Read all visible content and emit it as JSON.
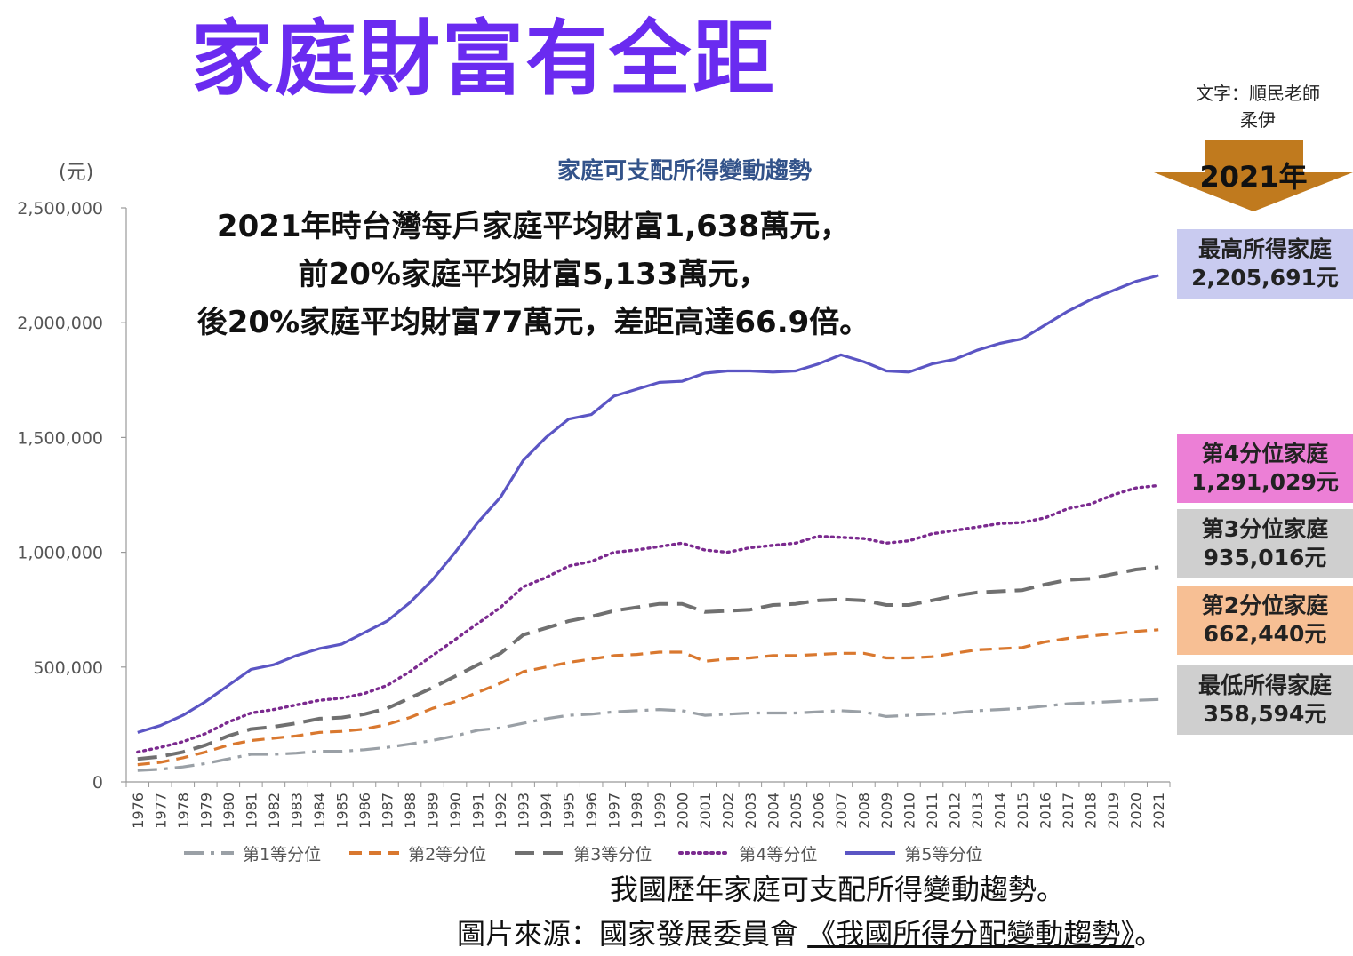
{
  "headline": "家庭財富有全距",
  "credit": {
    "line1": "文字：順民老師",
    "line2": "柔伊"
  },
  "annotation": {
    "line1": "2021年時台灣每戶家庭平均財富1,638萬元，",
    "line2": "前20%家庭平均財富5,133萬元，",
    "line3": "後20%家庭平均財富77萬元，差距高達66.9倍。"
  },
  "marker": {
    "label": "2021年",
    "color": "#c07a1e"
  },
  "callouts": [
    {
      "title": "最高所得家庭",
      "value": "2,205,691元",
      "bg": "#c9cbf0"
    },
    {
      "title": "第4分位家庭",
      "value": "1,291,029元",
      "bg": "#ec7fd6"
    },
    {
      "title": "第3分位家庭",
      "value": "935,016元",
      "bg": "#cfcfcf"
    },
    {
      "title": "第2分位家庭",
      "value": "662,440元",
      "bg": "#f7bf94"
    },
    {
      "title": "最低所得家庭",
      "value": "358,594元",
      "bg": "#cfcfcf"
    }
  ],
  "caption": "我國歷年家庭可支配所得變動趨勢。",
  "source": {
    "prefix": "圖片來源：國家發展委員會 ",
    "link": "《我國所得分配變動趨勢》",
    "suffix": "。"
  },
  "chart_data": {
    "type": "line",
    "title": "家庭可支配所得變動趨勢",
    "ylabel": "(元)",
    "xlabel": "",
    "ylim": [
      0,
      2500000
    ],
    "yticks": [
      0,
      500000,
      1000000,
      1500000,
      2000000,
      2500000
    ],
    "ytick_labels": [
      "0",
      "500,000",
      "1,000,000",
      "1,500,000",
      "2,000,000",
      "2,500,000"
    ],
    "grid": false,
    "legend_position": "bottom",
    "x": [
      "1976",
      "1977",
      "1978",
      "1979",
      "1980",
      "1981",
      "1982",
      "1983",
      "1984",
      "1985",
      "1986",
      "1987",
      "1988",
      "1989",
      "1990",
      "1991",
      "1992",
      "1993",
      "1994",
      "1995",
      "1996",
      "1997",
      "1998",
      "1999",
      "2000",
      "2001",
      "2002",
      "2003",
      "2004",
      "2005",
      "2006",
      "2007",
      "2008",
      "2009",
      "2010",
      "2011",
      "2012",
      "2013",
      "2014",
      "2015",
      "2016",
      "2017",
      "2018",
      "2019",
      "2020",
      "2021"
    ],
    "series": [
      {
        "name": "第1等分位",
        "color": "#9aa0a6",
        "dash": "dashdot",
        "values": [
          50000,
          55000,
          65000,
          80000,
          100000,
          120000,
          120000,
          125000,
          133000,
          133000,
          140000,
          150000,
          165000,
          180000,
          200000,
          225000,
          235000,
          255000,
          275000,
          290000,
          295000,
          305000,
          310000,
          315000,
          310000,
          290000,
          295000,
          300000,
          300000,
          300000,
          305000,
          310000,
          305000,
          285000,
          290000,
          295000,
          300000,
          310000,
          315000,
          320000,
          330000,
          340000,
          345000,
          350000,
          355000,
          358594
        ]
      },
      {
        "name": "第2等分位",
        "color": "#d9782f",
        "dash": "dashed",
        "values": [
          75000,
          85000,
          105000,
          130000,
          160000,
          180000,
          190000,
          200000,
          215000,
          220000,
          230000,
          250000,
          280000,
          320000,
          350000,
          390000,
          430000,
          480000,
          500000,
          520000,
          535000,
          550000,
          555000,
          565000,
          565000,
          525000,
          535000,
          540000,
          550000,
          550000,
          555000,
          560000,
          560000,
          540000,
          540000,
          545000,
          560000,
          575000,
          580000,
          585000,
          610000,
          625000,
          635000,
          645000,
          655000,
          662440
        ]
      },
      {
        "name": "第3等分位",
        "color": "#707070",
        "dash": "longdash",
        "values": [
          100000,
          110000,
          130000,
          160000,
          200000,
          230000,
          240000,
          255000,
          275000,
          280000,
          295000,
          320000,
          365000,
          410000,
          460000,
          510000,
          560000,
          640000,
          670000,
          700000,
          720000,
          745000,
          760000,
          775000,
          775000,
          740000,
          745000,
          750000,
          770000,
          775000,
          790000,
          795000,
          790000,
          770000,
          770000,
          790000,
          810000,
          825000,
          830000,
          835000,
          860000,
          880000,
          885000,
          905000,
          925000,
          935016
        ]
      },
      {
        "name": "第4等分位",
        "color": "#7b2a8f",
        "dash": "dotted",
        "values": [
          130000,
          150000,
          175000,
          210000,
          260000,
          300000,
          315000,
          335000,
          355000,
          365000,
          385000,
          420000,
          480000,
          550000,
          620000,
          690000,
          760000,
          850000,
          890000,
          940000,
          960000,
          1000000,
          1010000,
          1025000,
          1040000,
          1010000,
          1000000,
          1020000,
          1030000,
          1040000,
          1070000,
          1065000,
          1060000,
          1040000,
          1050000,
          1080000,
          1095000,
          1110000,
          1125000,
          1130000,
          1150000,
          1190000,
          1210000,
          1250000,
          1280000,
          1291029
        ]
      },
      {
        "name": "第5等分位",
        "color": "#5b55c4",
        "dash": "solid",
        "values": [
          215000,
          245000,
          290000,
          350000,
          420000,
          490000,
          510000,
          550000,
          580000,
          600000,
          650000,
          700000,
          780000,
          880000,
          1000000,
          1130000,
          1240000,
          1400000,
          1500000,
          1580000,
          1600000,
          1680000,
          1710000,
          1740000,
          1745000,
          1780000,
          1790000,
          1790000,
          1785000,
          1790000,
          1820000,
          1860000,
          1830000,
          1790000,
          1785000,
          1820000,
          1840000,
          1880000,
          1910000,
          1930000,
          1990000,
          2050000,
          2100000,
          2140000,
          2180000,
          2205691
        ]
      }
    ]
  }
}
